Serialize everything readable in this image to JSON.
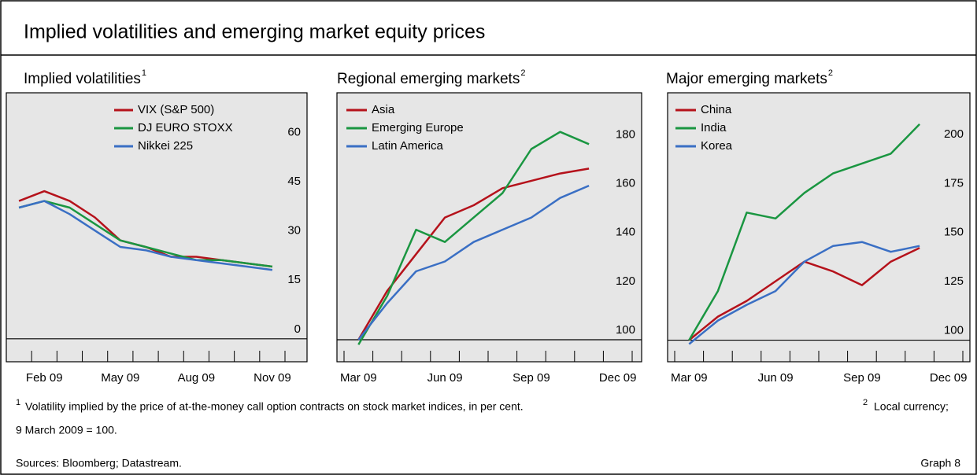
{
  "header": {
    "title": "Implied volatilities and emerging market equity prices"
  },
  "chart_data": [
    {
      "type": "line",
      "title": "Implied volatilities",
      "title_note": "1",
      "categories": [
        null,
        "Feb 09",
        null,
        null,
        "May 09",
        null,
        null,
        "Aug 09",
        null,
        null,
        "Nov 09"
      ],
      "ylim": [
        -7,
        75
      ],
      "yticks": [
        0,
        15,
        30,
        45,
        60
      ],
      "series": [
        {
          "name": "VIX (S&P 500)",
          "color": "#b5121b",
          "values": [
            42,
            45,
            42,
            37,
            30,
            28,
            25,
            25,
            24,
            23,
            22
          ]
        },
        {
          "name": "DJ EURO STOXX",
          "color": "#1a9641",
          "values": [
            40,
            42,
            40,
            35,
            30,
            28,
            26,
            24,
            24,
            23,
            22
          ]
        },
        {
          "name": "Nikkei 225",
          "color": "#3a6fc4",
          "values": [
            40,
            42,
            38,
            33,
            28,
            27,
            25,
            24,
            23,
            22,
            21
          ]
        }
      ]
    },
    {
      "type": "line",
      "title": "Regional emerging markets",
      "title_note": "2",
      "categories": [
        "Mar 09",
        null,
        null,
        "Jun 09",
        null,
        null,
        "Sep 09",
        null,
        null,
        "Dec 09"
      ],
      "ylim": [
        91,
        201
      ],
      "yticks": [
        100,
        120,
        140,
        160,
        180
      ],
      "series": [
        {
          "name": "Asia",
          "color": "#b5121b",
          "values": [
            100,
            120,
            135,
            150,
            155,
            162,
            165,
            168,
            170,
            null
          ]
        },
        {
          "name": "Emerging Europe",
          "color": "#1a9641",
          "values": [
            98,
            118,
            145,
            140,
            150,
            160,
            178,
            185,
            180,
            null
          ]
        },
        {
          "name": "Latin America",
          "color": "#3a6fc4",
          "values": [
            100,
            115,
            128,
            132,
            140,
            145,
            150,
            158,
            163,
            null
          ]
        }
      ]
    },
    {
      "type": "line",
      "title": "Major emerging markets",
      "title_note": "2",
      "categories": [
        "Mar 09",
        null,
        null,
        "Jun 09",
        null,
        null,
        "Sep 09",
        null,
        null,
        "Dec 09"
      ],
      "ylim": [
        89,
        226
      ],
      "yticks": [
        100,
        125,
        150,
        175,
        200
      ],
      "series": [
        {
          "name": "China",
          "color": "#b5121b",
          "values": [
            100,
            112,
            120,
            130,
            140,
            135,
            128,
            140,
            147,
            null
          ]
        },
        {
          "name": "India",
          "color": "#1a9641",
          "values": [
            100,
            125,
            165,
            162,
            175,
            185,
            190,
            195,
            210,
            null
          ]
        },
        {
          "name": "Korea",
          "color": "#3a6fc4",
          "values": [
            98,
            110,
            118,
            125,
            140,
            148,
            150,
            145,
            148,
            null
          ]
        }
      ]
    }
  ],
  "footnotes": [
    {
      "mark": "1",
      "text": "Volatility implied by the price of at-the-money call option contracts on stock market indices, in per cent."
    },
    {
      "mark": "2",
      "text": "Local currency;"
    },
    {
      "text": "9 March 2009 = 100."
    }
  ],
  "sources": "Sources: Bloomberg; Datastream.",
  "graph_label": "Graph 8"
}
